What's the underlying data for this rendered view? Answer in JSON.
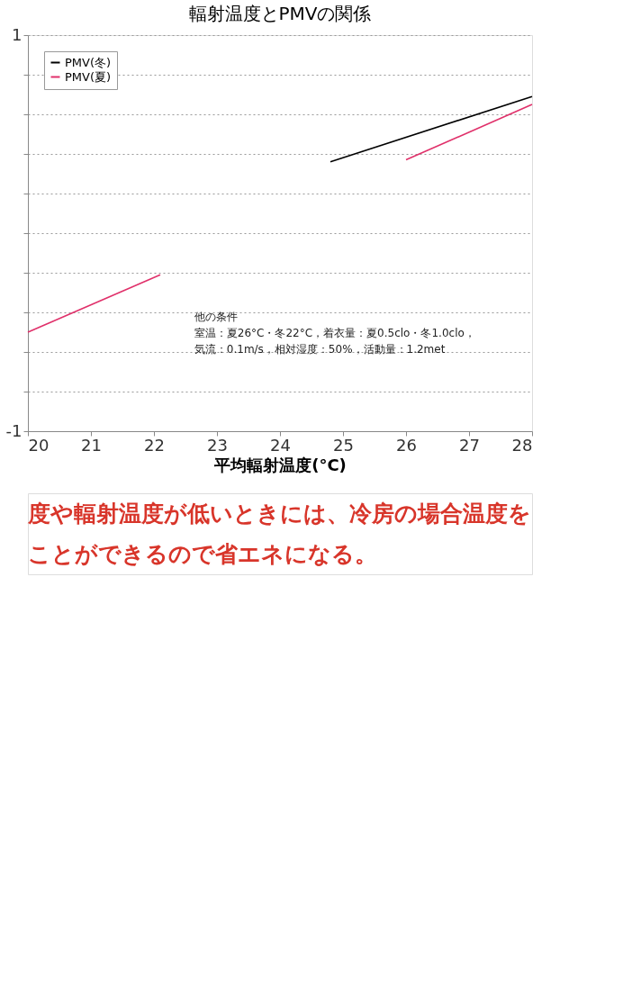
{
  "chart_data": {
    "type": "line",
    "title": "輻射温度とPMVの関係",
    "xlabel": "平均輻射温度(°C)",
    "xlim": [
      20,
      28
    ],
    "xticks": [
      20,
      21,
      22,
      23,
      24,
      25,
      26,
      27,
      28
    ],
    "ylim": [
      -1,
      1
    ],
    "yticks": [
      -1,
      {
        "value": -0.8,
        "label": null
      },
      {
        "value": -0.6,
        "label": null
      },
      {
        "value": -0.4,
        "label": null
      },
      {
        "value": -0.2,
        "label": null
      },
      {
        "value": 0,
        "label": null
      },
      {
        "value": 0.2,
        "label": null
      },
      {
        "value": 0.4,
        "label": null
      },
      {
        "value": 0.6,
        "label": null
      },
      {
        "value": 0.8,
        "label": null
      },
      1
    ],
    "grid": "y",
    "legend": "top left",
    "line_style": "solid",
    "marker": "none",
    "series": [
      {
        "name": "PMV(冬)",
        "color": "#000000",
        "x": [
          24.8,
          28
        ],
        "values": [
          0.36,
          0.69
        ]
      },
      {
        "name": "PMV(夏)",
        "color": "#e0306a",
        "x": [
          20,
          22.1,
          24,
          26.0,
          28
        ],
        "values": [
          -0.5,
          -0.21,
          null,
          0.37,
          0.65
        ]
      }
    ],
    "annotations": [
      "他の条件",
      "室温：夏26°C・冬22°C，着衣量：夏0.5clo・冬1.0clo，",
      "気流：0.1m/s，相対湿度：50%，活動量：1.2met",
      "度や輻射温度が低いときには、冷房の場合温度を",
      "ことができるので省エネになる。"
    ]
  }
}
